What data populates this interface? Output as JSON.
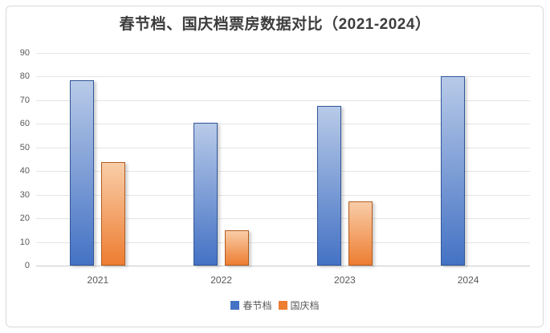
{
  "chart_data": {
    "type": "bar",
    "title": "春节档、国庆档票房数据对比（2021-2024）",
    "xlabel": "",
    "ylabel": "",
    "categories": [
      "2021",
      "2022",
      "2023",
      "2024"
    ],
    "series": [
      {
        "id": "spring-festival",
        "name": "春节档",
        "values": [
          78.4,
          60.4,
          67.6,
          80.2
        ],
        "color_top": "#b8cae8",
        "color_bottom": "#4472c4",
        "border_color": "#2f5597"
      },
      {
        "id": "national-day",
        "name": "国庆档",
        "values": [
          43.9,
          15.0,
          27.3,
          null
        ],
        "color_top": "#f9cda8",
        "color_bottom": "#ed7d31",
        "border_color": "#b15c20"
      }
    ],
    "ylim": [
      0,
      90
    ],
    "yticks": [
      0,
      10,
      20,
      30,
      40,
      50,
      60,
      70,
      80,
      90
    ],
    "grid": true,
    "legend_position": "bottom-center",
    "colors": {
      "gridline": "#e4e4e4",
      "axis_line": "#c9c9c9",
      "tick_text": "#595959",
      "title_text": "#3d3d3d",
      "frame_border": "#d9d9d9",
      "background": "#ffffff"
    }
  }
}
